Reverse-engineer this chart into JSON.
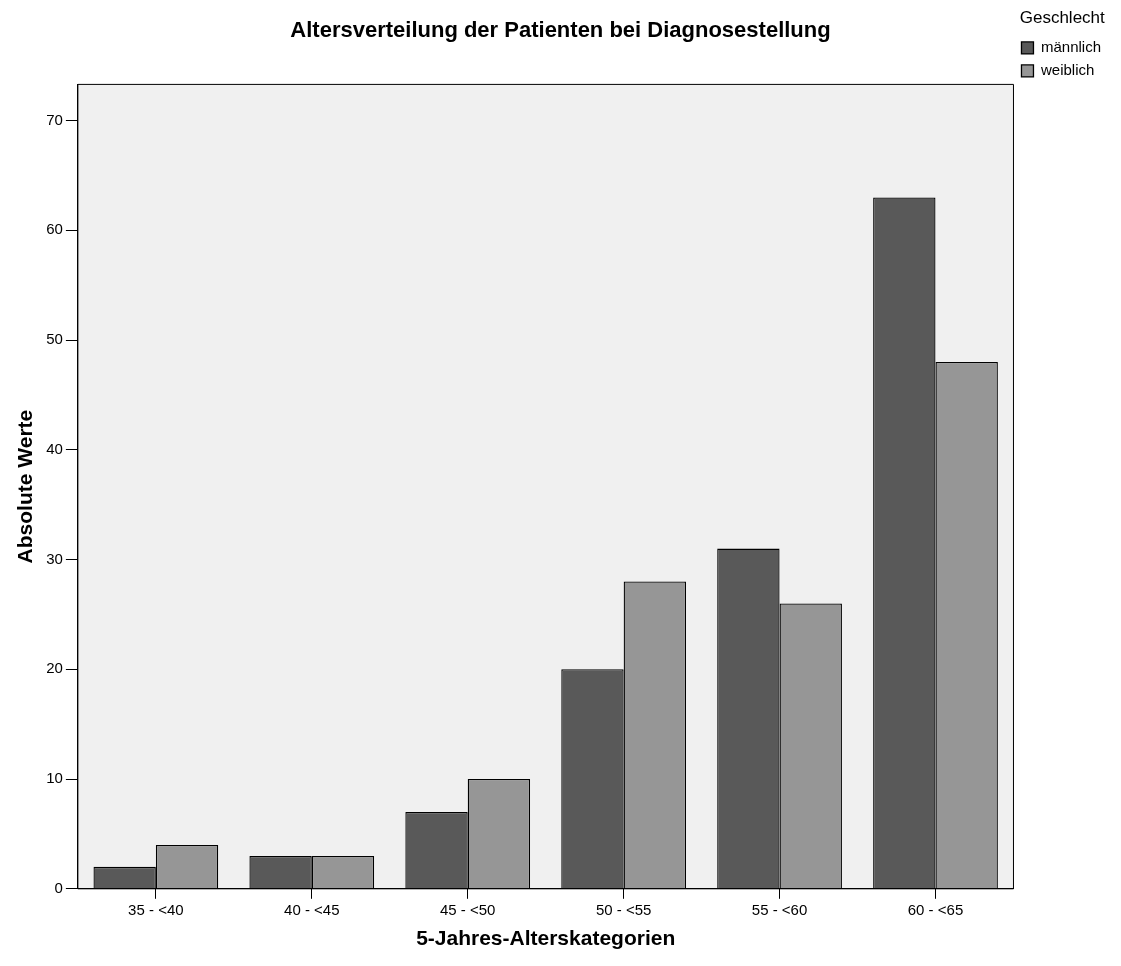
{
  "chart_data": {
    "type": "bar",
    "title": "Altersverteilung der Patienten bei Diagnosestellung",
    "xlabel": "5-Jahres-Alterskategorien",
    "ylabel": "Absolute Werte",
    "legend_title": "Geschlecht",
    "legend": "top right",
    "grid": false,
    "categories": [
      "35 - <40",
      "40 - <45",
      "45 - <50",
      "50 - <55",
      "55 - <60",
      "60 - <65"
    ],
    "series": [
      {
        "name": "männlich",
        "color": "#595959",
        "values": [
          2,
          3,
          7,
          20,
          31,
          63
        ]
      },
      {
        "name": "weiblich",
        "color": "#969696",
        "values": [
          4,
          3,
          10,
          28,
          26,
          48
        ]
      }
    ],
    "ylim": [
      0,
      73.3
    ],
    "yticks": [
      0,
      10,
      20,
      30,
      40,
      50,
      60,
      70
    ]
  }
}
